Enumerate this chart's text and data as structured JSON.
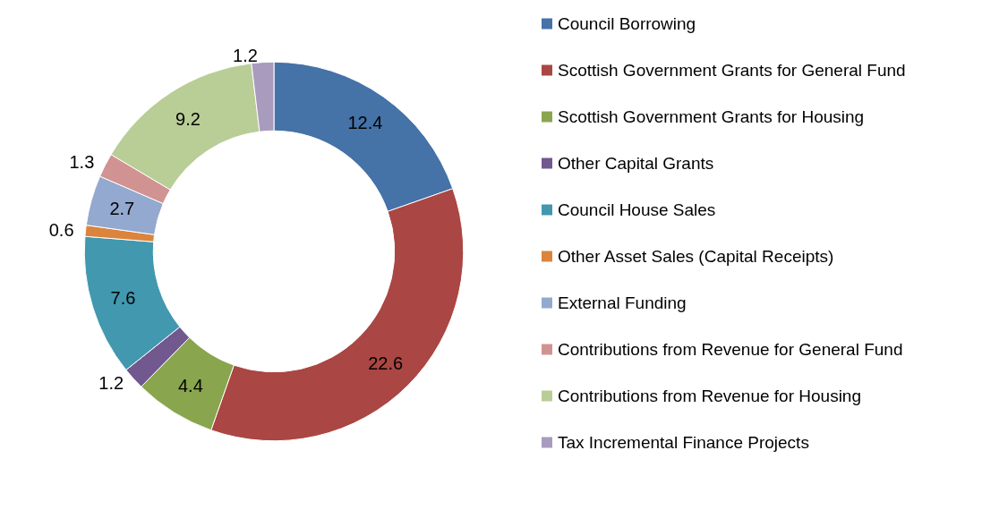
{
  "chart_data": {
    "type": "donut",
    "categories": [
      "Council Borrowing",
      "Scottish Government Grants for General Fund",
      "Scottish Government Grants for Housing",
      "Other Capital Grants",
      "Council House Sales",
      "Other Asset Sales (Capital Receipts)",
      "External Funding",
      "Contributions from Revenue for General Fund",
      "Contributions from Revenue for Housing",
      "Tax Incremental Finance Projects"
    ],
    "values": [
      12.4,
      22.6,
      4.4,
      1.2,
      7.6,
      0.6,
      2.7,
      1.3,
      9.2,
      1.2
    ],
    "colors": [
      "#4572a7",
      "#aa4643",
      "#89a54e",
      "#71588f",
      "#4198af",
      "#db843d",
      "#93a9cf",
      "#d19392",
      "#b9cd96",
      "#a99bbd"
    ],
    "data_labels": true,
    "legend": "right"
  }
}
